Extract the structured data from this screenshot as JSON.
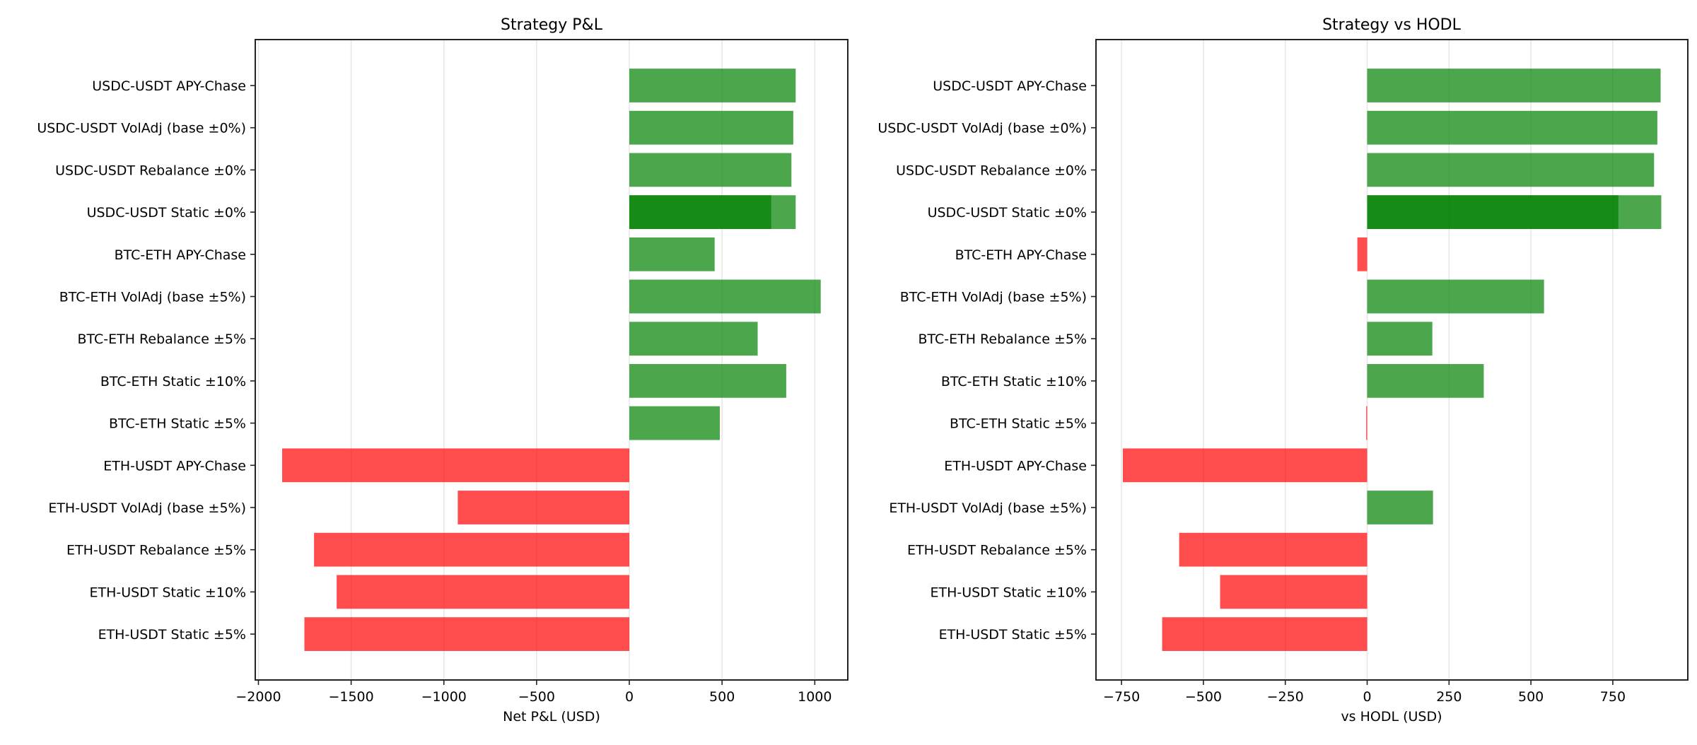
{
  "chart_data": [
    {
      "type": "bar",
      "orientation": "horizontal",
      "title": "Strategy P&L",
      "xlabel": "Net P&L (USD)",
      "ylabel": "",
      "xlim": [
        -2017,
        1178
      ],
      "xticks": [
        -2000,
        -1500,
        -1000,
        -500,
        0,
        500,
        1000
      ],
      "xtick_labels": [
        "−2000",
        "−1500",
        "−1000",
        "−500",
        "0",
        "500",
        "1000"
      ],
      "grid": "x",
      "categories": [
        "USDC-USDT APY-Chase",
        "USDC-USDT VolAdj (base ±0%)",
        "USDC-USDT Rebalance ±0%",
        "USDC-USDT Static ±0%",
        "BTC-ETH APY-Chase",
        "BTC-ETH VolAdj (base ±5%)",
        "BTC-ETH Rebalance ±5%",
        "BTC-ETH Static ±10%",
        "BTC-ETH Static ±5%",
        "ETH-USDT APY-Chase",
        "ETH-USDT VolAdj (base ±5%)",
        "ETH-USDT Rebalance ±5%",
        "ETH-USDT Static ±10%",
        "ETH-USDT Static ±5%"
      ],
      "values": [
        897,
        884,
        874,
        897,
        460,
        1032,
        692,
        846,
        488,
        -1872,
        -925,
        -1700,
        -1578,
        -1752
      ],
      "overlapping_bars": [
        {
          "category": "USDC-USDT Static ±0%",
          "value": 765
        }
      ]
    },
    {
      "type": "bar",
      "orientation": "horizontal",
      "title": "Strategy vs HODL",
      "xlabel": "vs HODL (USD)",
      "ylabel": "",
      "xlim": [
        -828,
        979
      ],
      "xticks": [
        -750,
        -500,
        -250,
        0,
        250,
        500,
        750
      ],
      "xtick_labels": [
        "−750",
        "−500",
        "−250",
        "0",
        "250",
        "500",
        "750"
      ],
      "grid": "x",
      "categories": [
        "USDC-USDT APY-Chase",
        "USDC-USDT VolAdj (base ±0%)",
        "USDC-USDT Rebalance ±0%",
        "USDC-USDT Static ±0%",
        "BTC-ETH APY-Chase",
        "BTC-ETH VolAdj (base ±5%)",
        "BTC-ETH Rebalance ±5%",
        "BTC-ETH Static ±10%",
        "BTC-ETH Static ±5%",
        "ETH-USDT APY-Chase",
        "ETH-USDT VolAdj (base ±5%)",
        "ETH-USDT Rebalance ±5%",
        "ETH-USDT Static ±10%",
        "ETH-USDT Static ±5%"
      ],
      "values": [
        896,
        886,
        876,
        898,
        -30,
        540,
        199,
        356,
        -3,
        -746,
        201,
        -574,
        -449,
        -626
      ],
      "overlapping_bars": [
        {
          "category": "USDC-USDT Static ±0%",
          "value": 767
        }
      ]
    }
  ],
  "colors": {
    "positive": "#008000",
    "negative": "#ff0000",
    "bar_alpha": 0.7,
    "grid": "#e6e6e6",
    "axis": "#222222"
  }
}
